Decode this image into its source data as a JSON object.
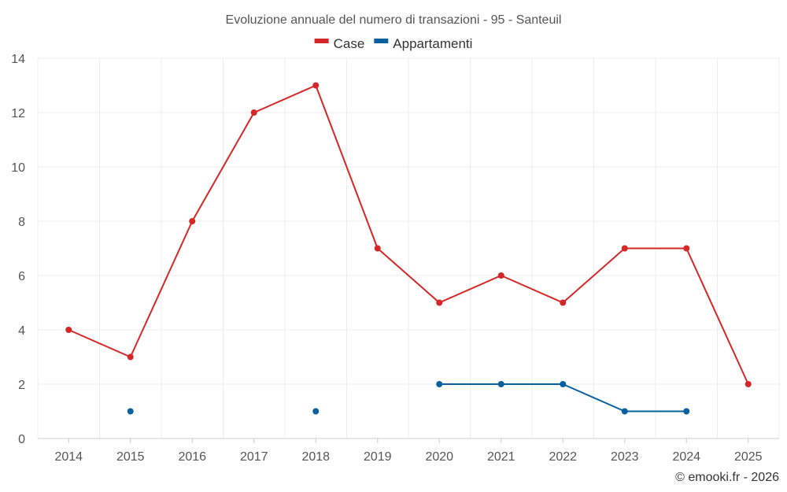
{
  "chart_data": {
    "type": "line",
    "title": "Evoluzione annuale del numero di transazioni - 95 - Santeuil",
    "categories": [
      "2014",
      "2015",
      "2016",
      "2017",
      "2018",
      "2019",
      "2020",
      "2021",
      "2022",
      "2023",
      "2024",
      "2025"
    ],
    "series": [
      {
        "name": "Case",
        "color": "#d62728",
        "values": [
          4,
          3,
          8,
          12,
          13,
          7,
          5,
          6,
          5,
          7,
          7,
          2
        ]
      },
      {
        "name": "Appartamenti",
        "color": "#08619e",
        "values": [
          null,
          1,
          null,
          null,
          1,
          null,
          2,
          2,
          2,
          1,
          1,
          null
        ]
      }
    ],
    "ylim": [
      0,
      14
    ],
    "yticks": [
      0,
      2,
      4,
      6,
      8,
      10,
      12,
      14
    ],
    "grid": true,
    "legend_position": "top-center"
  },
  "credit": "© emooki.fr - 2026"
}
